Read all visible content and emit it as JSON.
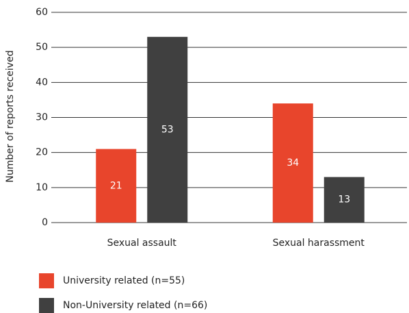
{
  "chart_data": {
    "type": "bar",
    "categories": [
      "Sexual assault",
      "Sexual harassment"
    ],
    "series": [
      {
        "name": "University related (n=55)",
        "color": "#e8452c",
        "values": [
          21,
          34
        ]
      },
      {
        "name": "Non-University related (n=66)",
        "color": "#404040",
        "values": [
          53,
          13
        ]
      }
    ],
    "ylabel": "Number of reports received",
    "ylim": [
      0,
      60
    ],
    "yticks": [
      0,
      10,
      20,
      30,
      40,
      50,
      60
    ],
    "grid": true,
    "legend": "bottom-left"
  }
}
